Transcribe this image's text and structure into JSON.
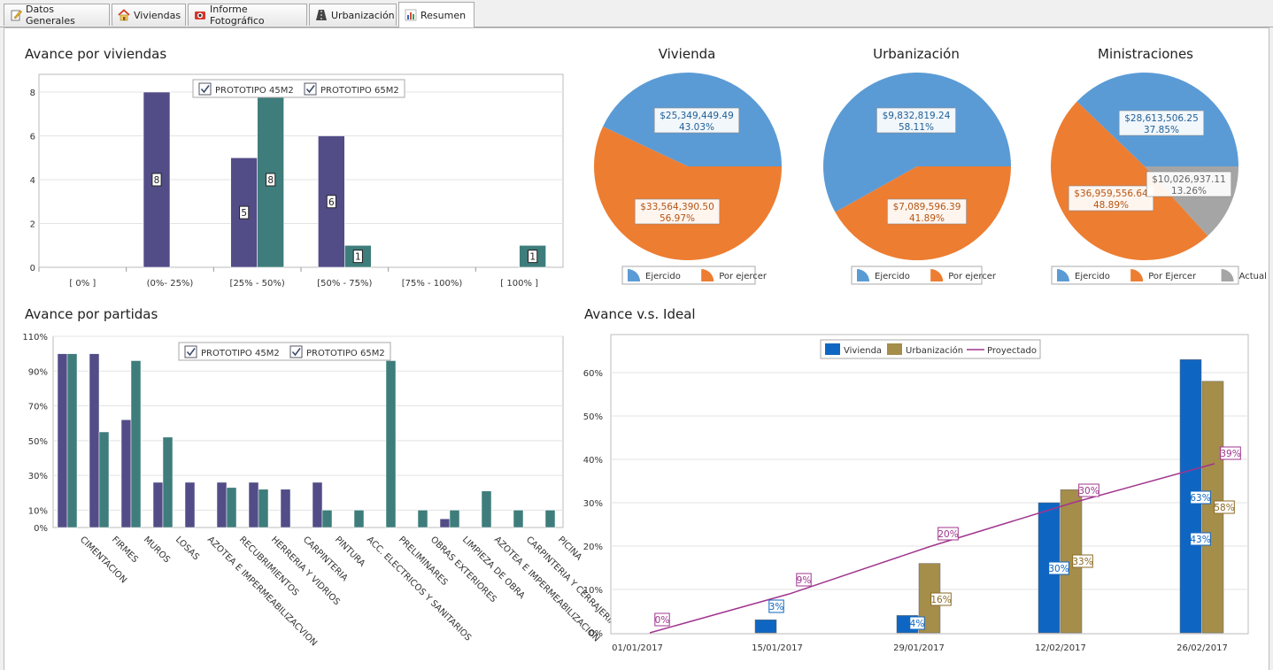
{
  "tabs": [
    {
      "label": "Datos Generales",
      "icon": "edit-icon"
    },
    {
      "label": "Viviendas",
      "icon": "house-icon"
    },
    {
      "label": "Informe Fotográfico",
      "icon": "camera-icon"
    },
    {
      "label": "Urbanización",
      "icon": "road-icon"
    },
    {
      "label": "Resumen",
      "icon": "bar-chart-icon",
      "active": true
    }
  ],
  "colors": {
    "purple": "#524d87",
    "teal": "#3e7d7b",
    "blue": "#5b9bd5",
    "orange": "#ed7d31",
    "gray": "#a5a5a5",
    "vivienda": "#0f66c2",
    "urbanizacion": "#a58d4a",
    "proyectado": "#a0358e"
  },
  "chart_data": [
    {
      "id": "viviendas",
      "type": "bar",
      "title": "Avance por viviendas",
      "categories": [
        "[ 0% ]",
        "(0%- 25%)",
        "[25% - 50%)",
        "[50% - 75%)",
        "[75% - 100%)",
        "[ 100% ]"
      ],
      "series": [
        {
          "name": "PROTOTIPO 45M2",
          "values": [
            0,
            8,
            5,
            6,
            0,
            0
          ],
          "labels": [
            "",
            "8",
            "5",
            "6",
            "",
            ""
          ]
        },
        {
          "name": "PROTOTIPO 65M2",
          "values": [
            0,
            0,
            8,
            1,
            0,
            1
          ],
          "labels": [
            "",
            "",
            "8",
            "1",
            "",
            "1"
          ]
        }
      ],
      "yticks": [
        "0",
        "2",
        "4",
        "6",
        "8"
      ],
      "ylim": [
        0,
        8
      ],
      "legend": "top"
    },
    {
      "id": "vivienda_pie",
      "type": "pie",
      "title": "Vivienda",
      "slices": [
        {
          "label": "Ejercido",
          "amount": "$25,349,449.49",
          "percent": "43.03%",
          "value": 43.03
        },
        {
          "label": "Por ejercer",
          "amount": "$33,564,390.50",
          "percent": "56.97%",
          "value": 56.97
        }
      ]
    },
    {
      "id": "urbanizacion_pie",
      "type": "pie",
      "title": "Urbanización",
      "slices": [
        {
          "label": "Ejercido",
          "amount": "$9,832,819.24",
          "percent": "58.11%",
          "value": 58.11
        },
        {
          "label": "Por ejercer",
          "amount": "$7,089,596.39",
          "percent": "41.89%",
          "value": 41.89
        }
      ]
    },
    {
      "id": "ministraciones_pie",
      "type": "pie",
      "title": "Ministraciones",
      "slices": [
        {
          "label": "Ejercido",
          "amount": "$28,613,506.25",
          "percent": "37.85%",
          "value": 37.85
        },
        {
          "label": "Por Ejercer",
          "amount": "$36,959,556.64",
          "percent": "48.89%",
          "value": 48.89
        },
        {
          "label": "Actual",
          "amount": "$10,026,937.11",
          "percent": "13.26%",
          "value": 13.26
        }
      ]
    },
    {
      "id": "partidas",
      "type": "bar",
      "title": "Avance por partidas",
      "categories": [
        "CIMENTACION",
        "FIRMES",
        "MUROS",
        "LOSAS",
        "AZOTEA E IMPERMEABILIZACVION",
        "RECUBRIMIENTOS",
        "HERRERIA Y VIDRIOS",
        "CARPINTERIA",
        "PINTURA",
        "ACC. ELECTRICOS Y SANITARIOS",
        "PRELIMINARES",
        "OBRAS EXTERIORES",
        "LIMPIEZA DE OBRA",
        "AZOTEA E IMPERMEABILIZACION",
        "CARPINTERIA Y CERRAJERIA",
        "PICINA"
      ],
      "series": [
        {
          "name": "PROTOTIPO 45M2",
          "values": [
            100,
            100,
            62,
            26,
            26,
            26,
            26,
            22,
            26,
            0,
            0,
            0,
            5,
            0,
            0,
            0
          ]
        },
        {
          "name": "PROTOTIPO 65M2",
          "values": [
            100,
            55,
            96,
            52,
            0,
            23,
            22,
            0,
            10,
            10,
            96,
            10,
            10,
            21,
            10,
            10
          ]
        }
      ],
      "yticks": [
        "0%",
        "10%",
        "30%",
        "50%",
        "70%",
        "90%",
        "110%"
      ],
      "ylim": [
        0,
        110
      ],
      "legend": "top"
    },
    {
      "id": "ideal",
      "type": "bar",
      "title": "Avance v.s. Ideal",
      "categories": [
        "01/01/2017",
        "15/01/2017",
        "29/01/2017",
        "12/02/2017",
        "26/02/2017"
      ],
      "series": [
        {
          "name": "Vivienda",
          "values": [
            0,
            3,
            4,
            30,
            63
          ],
          "labels": [
            "",
            "3%",
            "4%",
            "30%",
            "63%"
          ]
        },
        {
          "name": "Urbanización",
          "values": [
            0,
            0,
            16,
            33,
            58
          ],
          "labels": [
            "",
            "",
            "16%",
            "33%",
            "58%"
          ]
        },
        {
          "name": "Proyectado",
          "type": "line",
          "values": [
            0,
            9,
            20,
            30,
            39
          ],
          "labels": [
            "0%",
            "9%",
            "20%",
            "30%",
            "39%"
          ]
        }
      ],
      "extra_label": "43%",
      "yticks": [
        "0%",
        "10%",
        "20%",
        "30%",
        "40%",
        "50%",
        "60%"
      ],
      "ylim": [
        0,
        60
      ],
      "legend": "top"
    }
  ]
}
